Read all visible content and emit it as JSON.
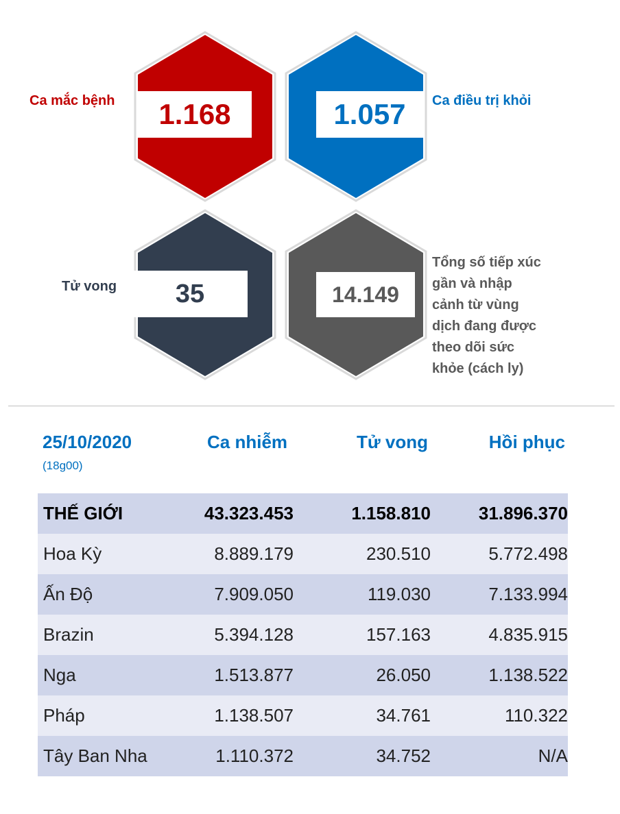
{
  "stats": {
    "cases": {
      "label": "Ca mắc bệnh",
      "value": "1.168",
      "color": "#c00000"
    },
    "recovered": {
      "label": "Ca điều trị khỏi",
      "value": "1.057",
      "color": "#0070c0"
    },
    "deaths": {
      "label": "Tử vong",
      "value": "35",
      "color": "#323e4f"
    },
    "monitored": {
      "label_lines": [
        "Tổng số tiếp xúc",
        "gần và nhập",
        "cảnh từ vùng",
        "dịch đang được",
        "theo dõi sức",
        "khỏe (cách ly)"
      ],
      "value": "14.149",
      "color": "#595959"
    }
  },
  "table": {
    "date": "25/10/2020",
    "time": "(18g00)",
    "headers": [
      "Ca nhiễm",
      "Tử vong",
      "Hồi phục"
    ],
    "rows": [
      {
        "name": "THẾ GIỚI",
        "cases": "43.323.453",
        "deaths": "1.158.810",
        "recovered": "31.896.370"
      },
      {
        "name": "Hoa Kỳ",
        "cases": "8.889.179",
        "deaths": "230.510",
        "recovered": "5.772.498"
      },
      {
        "name": "Ấn Độ",
        "cases": "7.909.050",
        "deaths": "119.030",
        "recovered": "7.133.994"
      },
      {
        "name": "Brazin",
        "cases": "5.394.128",
        "deaths": "157.163",
        "recovered": "4.835.915"
      },
      {
        "name": "Nga",
        "cases": "1.513.877",
        "deaths": "26.050",
        "recovered": "1.138.522"
      },
      {
        "name": "Pháp",
        "cases": "1.138.507",
        "deaths": "34.761",
        "recovered": "110.322"
      },
      {
        "name": "Tây Ban Nha",
        "cases": "1.110.372",
        "deaths": "34.752",
        "recovered": "N/A"
      }
    ]
  }
}
